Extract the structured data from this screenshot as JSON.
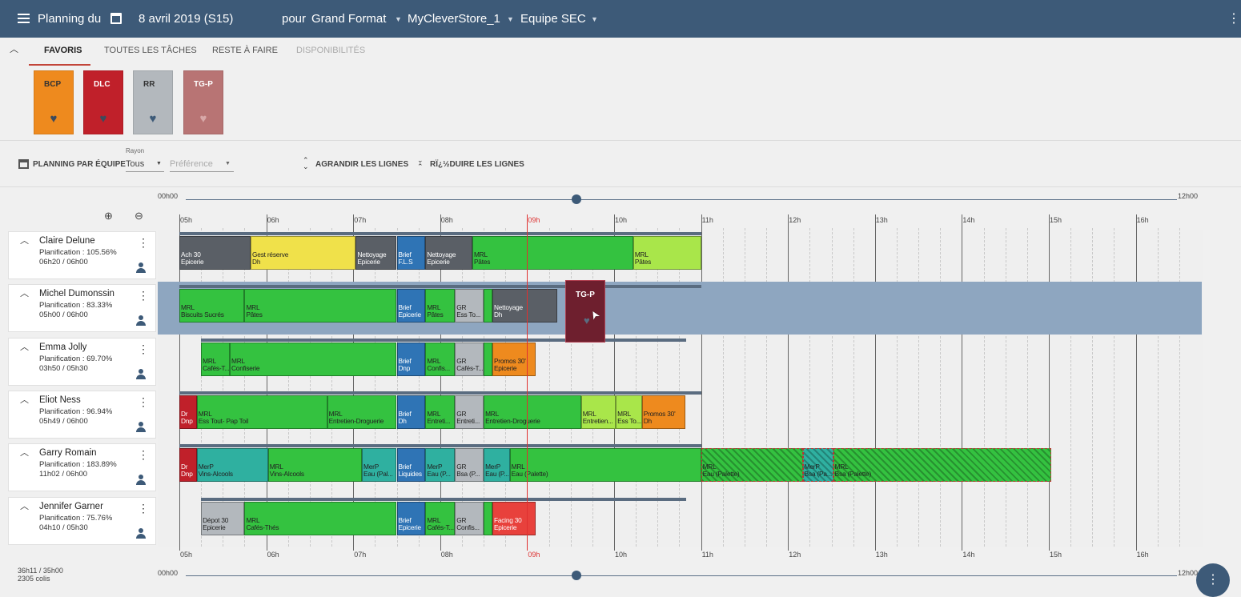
{
  "header": {
    "title": "Planning du",
    "date": "8 avril 2019 (S15)",
    "pour": "pour",
    "format": "Grand Format",
    "store": "MyCleverStore_1",
    "team": "Equipe SEC"
  },
  "tabs": [
    {
      "label": "FAVORIS",
      "active": true
    },
    {
      "label": "TOUTES LES TÂCHES",
      "active": false
    },
    {
      "label": "RESTE À FAIRE",
      "active": false
    },
    {
      "label": "DISPONIBILITÉS",
      "active": false,
      "disabled": true
    }
  ],
  "favorites": [
    {
      "label": "BCP",
      "color": "#ee8a1e"
    },
    {
      "label": "DLC",
      "color": "#c0202a"
    },
    {
      "label": "RR",
      "color": "#b3b8bd"
    },
    {
      "label": "TG-P",
      "color": "#b87474"
    }
  ],
  "controls": {
    "planning_label": "PLANNING PAR ÉQUIPE",
    "rayon_label": "Rayon",
    "rayon_value": "Tous",
    "preference_placeholder": "Préférence",
    "agrandir": "AGRANDIR LES LIGNES",
    "reduire": "RÏ¿½DUIRE LES LIGNES"
  },
  "timeline": {
    "range_start": "00h00",
    "range_end": "12h00",
    "hours": [
      "05h",
      "06h",
      "07h",
      "08h",
      "09h",
      "10h",
      "11h",
      "12h",
      "13h",
      "14h",
      "15h",
      "16h"
    ],
    "current_hour": "09h"
  },
  "people": [
    {
      "name": "Claire Delune",
      "planning": "Planification : 105.56%",
      "hours": "06h20 / 06h00"
    },
    {
      "name": "Michel Dumonssin",
      "planning": "Planification : 83.33%",
      "hours": "05h00 / 06h00"
    },
    {
      "name": "Emma Jolly",
      "planning": "Planification : 69.70%",
      "hours": "03h50 / 05h30"
    },
    {
      "name": "Eliot Ness",
      "planning": "Planification : 96.94%",
      "hours": "05h49 / 06h00"
    },
    {
      "name": "Garry Romain",
      "planning": "Planification : 183.89%",
      "hours": "11h02 / 06h00"
    },
    {
      "name": "Jennifer Garner",
      "planning": "Planification : 75.76%",
      "hours": "04h10 / 05h30"
    }
  ],
  "tasks": [
    [
      {
        "l1": "Ach 30",
        "l2": "Epicerie",
        "s": 5.0,
        "e": 5.82,
        "c": "#5a5f66",
        "dark": true
      },
      {
        "l1": "Gest réserve",
        "l2": "Dh",
        "s": 5.82,
        "e": 7.03,
        "c": "#f0e14a"
      },
      {
        "l1": "Nettoyage",
        "l2": "Epicerie",
        "s": 7.03,
        "e": 7.5,
        "c": "#5a5f66",
        "dark": true
      },
      {
        "l1": "Brief",
        "l2": "F.L.S",
        "s": 7.5,
        "e": 7.83,
        "c": "#2f74b5",
        "dark": true
      },
      {
        "l1": "Nettoyage",
        "l2": "Epicerie",
        "s": 7.83,
        "e": 8.37,
        "c": "#5a5f66",
        "dark": true
      },
      {
        "l1": "MRL",
        "l2": "Pâtes",
        "s": 8.37,
        "e": 10.22,
        "c": "#34c240"
      },
      {
        "l1": "MRL",
        "l2": "Pâtes",
        "s": 10.22,
        "e": 11.0,
        "c": "#a9e64a"
      }
    ],
    [
      {
        "l1": "MRL",
        "l2": "Biscuits Sucrés",
        "s": 5.0,
        "e": 5.75,
        "c": "#34c240"
      },
      {
        "l1": "MRL",
        "l2": "Pâtes",
        "s": 5.75,
        "e": 7.5,
        "c": "#34c240"
      },
      {
        "l1": "Brief",
        "l2": "Epicerie",
        "s": 7.5,
        "e": 7.83,
        "c": "#2f74b5",
        "dark": true
      },
      {
        "l1": "MRL",
        "l2": "Pâtes",
        "s": 7.83,
        "e": 8.17,
        "c": "#34c240"
      },
      {
        "l1": "GR",
        "l2": "Ess To...",
        "s": 8.17,
        "e": 8.5,
        "c": "#b3b8bd"
      },
      {
        "l1": "",
        "l2": "",
        "s": 8.5,
        "e": 8.6,
        "c": "#34c240"
      },
      {
        "l1": "Nettoyage",
        "l2": "Dh",
        "s": 8.6,
        "e": 9.35,
        "c": "#5a5f66",
        "dark": true
      }
    ],
    [
      {
        "l1": "MRL",
        "l2": "Cafés-T...",
        "s": 5.25,
        "e": 5.58,
        "c": "#34c240"
      },
      {
        "l1": "MRL",
        "l2": "Confiserie",
        "s": 5.58,
        "e": 7.5,
        "c": "#34c240"
      },
      {
        "l1": "Brief",
        "l2": "Dnp",
        "s": 7.5,
        "e": 7.83,
        "c": "#2f74b5",
        "dark": true
      },
      {
        "l1": "MRL",
        "l2": "Confis...",
        "s": 7.83,
        "e": 8.17,
        "c": "#34c240"
      },
      {
        "l1": "GR",
        "l2": "Cafés-T...",
        "s": 8.17,
        "e": 8.5,
        "c": "#b3b8bd"
      },
      {
        "l1": "",
        "l2": "",
        "s": 8.5,
        "e": 8.6,
        "c": "#34c240"
      },
      {
        "l1": "Promos 30'",
        "l2": "Epicerie",
        "s": 8.6,
        "e": 9.1,
        "c": "#ee8a1e"
      }
    ],
    [
      {
        "l1": "Dr",
        "l2": "Dnp",
        "s": 5.0,
        "e": 5.2,
        "c": "#c0202a",
        "dark": true
      },
      {
        "l1": "MRL",
        "l2": "Ess Tout- Pap Toil",
        "s": 5.2,
        "e": 6.7,
        "c": "#34c240"
      },
      {
        "l1": "MRL",
        "l2": "Entretien-Droguerie",
        "s": 6.7,
        "e": 7.5,
        "c": "#34c240"
      },
      {
        "l1": "Brief",
        "l2": "Dh",
        "s": 7.5,
        "e": 7.83,
        "c": "#2f74b5",
        "dark": true
      },
      {
        "l1": "MRL",
        "l2": "Entreti...",
        "s": 7.83,
        "e": 8.17,
        "c": "#34c240"
      },
      {
        "l1": "GR",
        "l2": "Entreti...",
        "s": 8.17,
        "e": 8.5,
        "c": "#b3b8bd"
      },
      {
        "l1": "MRL",
        "l2": "Entretien-Droguerie",
        "s": 8.5,
        "e": 9.62,
        "c": "#34c240"
      },
      {
        "l1": "MRL",
        "l2": "Entretien...",
        "s": 9.62,
        "e": 10.02,
        "c": "#a9e64a"
      },
      {
        "l1": "MRL",
        "l2": "Ess To...",
        "s": 10.02,
        "e": 10.32,
        "c": "#a9e64a"
      },
      {
        "l1": "Promos 30'",
        "l2": "Dh",
        "s": 10.32,
        "e": 10.82,
        "c": "#ee8a1e"
      }
    ],
    [
      {
        "l1": "Dr",
        "l2": "Dnp",
        "s": 5.0,
        "e": 5.2,
        "c": "#c0202a",
        "dark": true
      },
      {
        "l1": "MerP",
        "l2": "Vins-Alcools",
        "s": 5.2,
        "e": 6.02,
        "c": "#2fb0a0"
      },
      {
        "l1": "MRL",
        "l2": "Vins-Alcools",
        "s": 6.02,
        "e": 7.1,
        "c": "#34c240"
      },
      {
        "l1": "MerP",
        "l2": "Eau (Pal...",
        "s": 7.1,
        "e": 7.5,
        "c": "#2fb0a0"
      },
      {
        "l1": "Brief",
        "l2": "Liquides",
        "s": 7.5,
        "e": 7.83,
        "c": "#2f74b5",
        "dark": true
      },
      {
        "l1": "MerP",
        "l2": "Eau (P...",
        "s": 7.83,
        "e": 8.17,
        "c": "#2fb0a0"
      },
      {
        "l1": "GR",
        "l2": "Bsa (P...",
        "s": 8.17,
        "e": 8.5,
        "c": "#b3b8bd"
      },
      {
        "l1": "MerP",
        "l2": "Eau (P...",
        "s": 8.5,
        "e": 8.8,
        "c": "#2fb0a0"
      },
      {
        "l1": "MRL",
        "l2": "Eau (Palette)",
        "s": 8.8,
        "e": 11.0,
        "c": "#34c240"
      },
      {
        "l1": "MRL",
        "l2": "Eau (Palette)",
        "s": 11.0,
        "e": 12.17,
        "c": "#34c240",
        "hatched": true
      },
      {
        "l1": "MerP",
        "l2": "Bsa (Pa...",
        "s": 12.17,
        "e": 12.52,
        "c": "#2fb0a0",
        "hatched": true
      },
      {
        "l1": "MRL",
        "l2": "Bsa (Palette)",
        "s": 12.52,
        "e": 15.03,
        "c": "#34c240",
        "hatched": true
      }
    ],
    [
      {
        "l1": "Dépot 30",
        "l2": "Epicerie",
        "s": 5.25,
        "e": 5.75,
        "c": "#b3b8bd"
      },
      {
        "l1": "MRL",
        "l2": "Cafés-Thés",
        "s": 5.75,
        "e": 7.5,
        "c": "#34c240"
      },
      {
        "l1": "Brief",
        "l2": "Epicerie",
        "s": 7.5,
        "e": 7.83,
        "c": "#2f74b5",
        "dark": true
      },
      {
        "l1": "MRL",
        "l2": "Cafés-T...",
        "s": 7.83,
        "e": 8.17,
        "c": "#34c240"
      },
      {
        "l1": "GR",
        "l2": "Confis...",
        "s": 8.17,
        "e": 8.5,
        "c": "#b3b8bd"
      },
      {
        "l1": "",
        "l2": "",
        "s": 8.5,
        "e": 8.6,
        "c": "#34c240"
      },
      {
        "l1": "Facing 30",
        "l2": "Epicerie",
        "s": 8.6,
        "e": 9.1,
        "c": "#e8413c",
        "dark": true
      }
    ]
  ],
  "drag_card": {
    "label": "TG-P"
  },
  "footer": {
    "total": "36h11 / 35h00",
    "colis": "2305 colis"
  }
}
